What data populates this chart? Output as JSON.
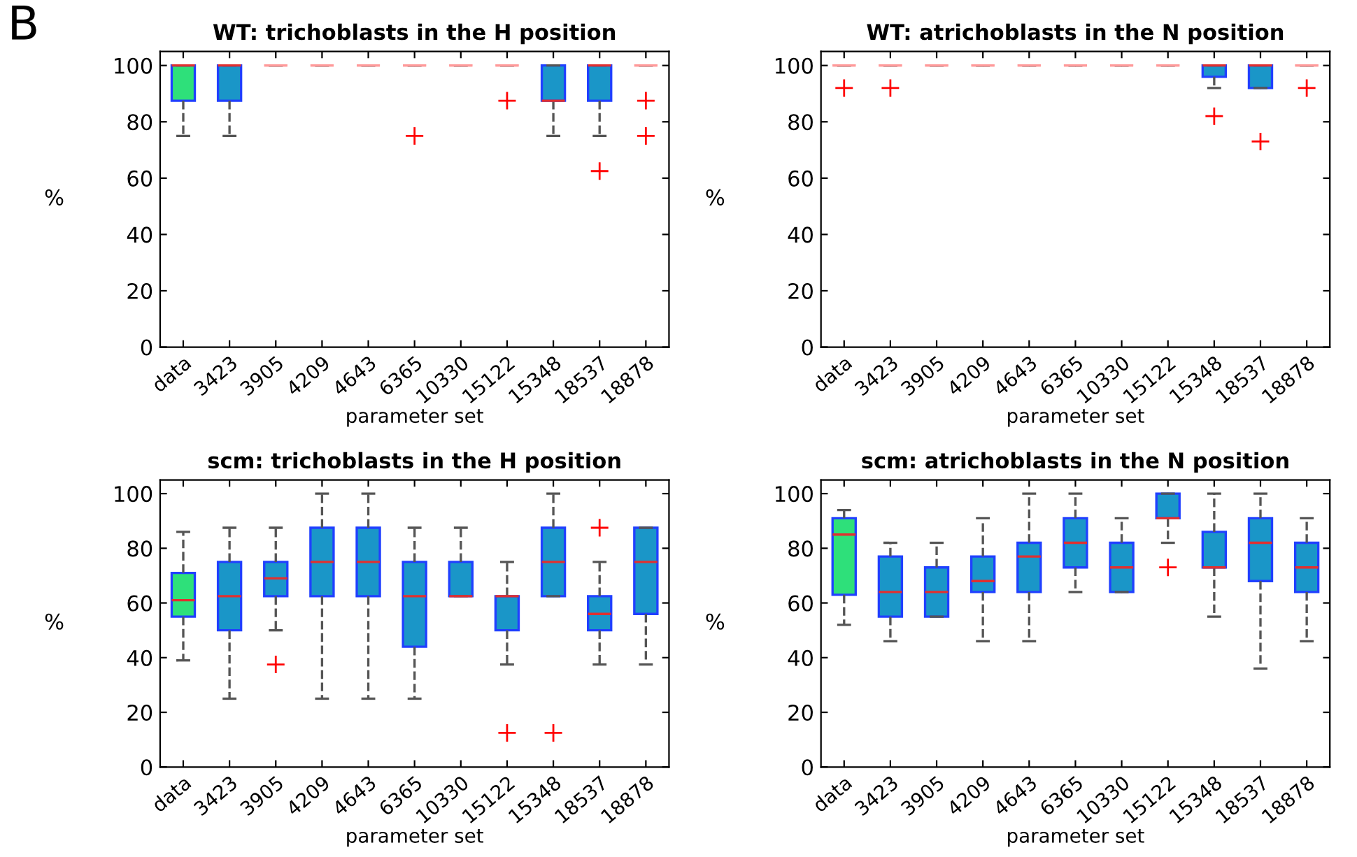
{
  "chart_data": [
    {
      "type": "box",
      "title": "WT: trichoblasts in the H position",
      "xlabel": "parameter set",
      "ylabel": "%",
      "annotations": [
        "B"
      ],
      "categories": [
        "data",
        "3423",
        "3905",
        "4209",
        "4643",
        "6365",
        "10330",
        "15122",
        "15348",
        "18537",
        "18878"
      ],
      "colors": [
        "#2ee07a",
        "#1a96c8",
        "#ff9a9a",
        "#ff9a9a",
        "#ff9a9a",
        "#ff9a9a",
        "#ff9a9a",
        "#ff9a9a",
        "#1a96c8",
        "#1a96c8",
        "#ff9a9a"
      ],
      "boxes": [
        {
          "low": 75,
          "q1": 87.5,
          "median": 100,
          "q3": 100,
          "high": 100
        },
        {
          "low": 75,
          "q1": 87.5,
          "median": 100,
          "q3": 100,
          "high": 100
        },
        {
          "low": 100,
          "q1": 100,
          "median": 100,
          "q3": 100,
          "high": 100
        },
        {
          "low": 100,
          "q1": 100,
          "median": 100,
          "q3": 100,
          "high": 100
        },
        {
          "low": 100,
          "q1": 100,
          "median": 100,
          "q3": 100,
          "high": 100
        },
        {
          "low": 100,
          "q1": 100,
          "median": 100,
          "q3": 100,
          "high": 100,
          "outliers": [
            75
          ]
        },
        {
          "low": 100,
          "q1": 100,
          "median": 100,
          "q3": 100,
          "high": 100
        },
        {
          "low": 100,
          "q1": 100,
          "median": 100,
          "q3": 100,
          "high": 100,
          "outliers": [
            87.5
          ]
        },
        {
          "low": 75,
          "q1": 87.5,
          "median": 87.5,
          "q3": 100,
          "high": 100
        },
        {
          "low": 75,
          "q1": 87.5,
          "median": 100,
          "q3": 100,
          "high": 100,
          "outliers": [
            62.5
          ]
        },
        {
          "low": 100,
          "q1": 100,
          "median": 100,
          "q3": 100,
          "high": 100,
          "outliers": [
            87.5,
            75
          ]
        }
      ],
      "ylim": [
        0,
        105
      ],
      "yticks": [
        0,
        20,
        40,
        60,
        80,
        100
      ],
      "grid": false
    },
    {
      "type": "box",
      "title": "WT: atrichoblasts in the N position",
      "xlabel": "parameter set",
      "ylabel": "%",
      "categories": [
        "data",
        "3423",
        "3905",
        "4209",
        "4643",
        "6365",
        "10330",
        "15122",
        "15348",
        "18537",
        "18878"
      ],
      "colors": [
        "#ff9a9a",
        "#ff9a9a",
        "#ff9a9a",
        "#ff9a9a",
        "#ff9a9a",
        "#ff9a9a",
        "#ff9a9a",
        "#ff9a9a",
        "#1a96c8",
        "#1a96c8",
        "#ff9a9a"
      ],
      "boxes": [
        {
          "low": 100,
          "q1": 100,
          "median": 100,
          "q3": 100,
          "high": 100,
          "outliers": [
            92
          ]
        },
        {
          "low": 100,
          "q1": 100,
          "median": 100,
          "q3": 100,
          "high": 100,
          "outliers": [
            92
          ]
        },
        {
          "low": 100,
          "q1": 100,
          "median": 100,
          "q3": 100,
          "high": 100
        },
        {
          "low": 100,
          "q1": 100,
          "median": 100,
          "q3": 100,
          "high": 100
        },
        {
          "low": 100,
          "q1": 100,
          "median": 100,
          "q3": 100,
          "high": 100
        },
        {
          "low": 100,
          "q1": 100,
          "median": 100,
          "q3": 100,
          "high": 100
        },
        {
          "low": 100,
          "q1": 100,
          "median": 100,
          "q3": 100,
          "high": 100
        },
        {
          "low": 100,
          "q1": 100,
          "median": 100,
          "q3": 100,
          "high": 100
        },
        {
          "low": 92,
          "q1": 96,
          "median": 100,
          "q3": 100,
          "high": 100,
          "outliers": [
            82
          ]
        },
        {
          "low": 92,
          "q1": 92,
          "median": 100,
          "q3": 100,
          "high": 100,
          "outliers": [
            73
          ]
        },
        {
          "low": 100,
          "q1": 100,
          "median": 100,
          "q3": 100,
          "high": 100,
          "outliers": [
            92
          ]
        }
      ],
      "ylim": [
        0,
        105
      ],
      "yticks": [
        0,
        20,
        40,
        60,
        80,
        100
      ],
      "grid": false
    },
    {
      "type": "box",
      "title": "scm: trichoblasts in the H position",
      "xlabel": "parameter set",
      "ylabel": "%",
      "categories": [
        "data",
        "3423",
        "3905",
        "4209",
        "4643",
        "6365",
        "10330",
        "15122",
        "15348",
        "18537",
        "18878"
      ],
      "colors": [
        "#2ee07a",
        "#1a96c8",
        "#1a96c8",
        "#1a96c8",
        "#1a96c8",
        "#1a96c8",
        "#1a96c8",
        "#1a96c8",
        "#1a96c8",
        "#1a96c8",
        "#1a96c8"
      ],
      "boxes": [
        {
          "low": 39,
          "q1": 55,
          "median": 61,
          "q3": 71,
          "high": 86
        },
        {
          "low": 25,
          "q1": 50,
          "median": 62.5,
          "q3": 75,
          "high": 87.5
        },
        {
          "low": 50,
          "q1": 62.5,
          "median": 69,
          "q3": 75,
          "high": 87.5,
          "outliers": [
            37.5
          ]
        },
        {
          "low": 25,
          "q1": 62.5,
          "median": 75,
          "q3": 87.5,
          "high": 100
        },
        {
          "low": 25,
          "q1": 62.5,
          "median": 75,
          "q3": 87.5,
          "high": 100
        },
        {
          "low": 25,
          "q1": 44,
          "median": 62.5,
          "q3": 75,
          "high": 87.5
        },
        {
          "low": 62.5,
          "q1": 62.5,
          "median": 62.5,
          "q3": 75,
          "high": 87.5
        },
        {
          "low": 37.5,
          "q1": 50,
          "median": 62.5,
          "q3": 62.5,
          "high": 75,
          "outliers": [
            12.5
          ]
        },
        {
          "low": 62.5,
          "q1": 62.5,
          "median": 75,
          "q3": 87.5,
          "high": 100,
          "outliers": [
            12.5
          ]
        },
        {
          "low": 37.5,
          "q1": 50,
          "median": 56,
          "q3": 62.5,
          "high": 75,
          "outliers": [
            87.5
          ]
        },
        {
          "low": 37.5,
          "q1": 56,
          "median": 75,
          "q3": 87.5,
          "high": 87.5
        }
      ],
      "ylim": [
        0,
        105
      ],
      "yticks": [
        0,
        20,
        40,
        60,
        80,
        100
      ],
      "grid": false
    },
    {
      "type": "box",
      "title": "scm: atrichoblasts in the N position",
      "xlabel": "parameter set",
      "ylabel": "%",
      "categories": [
        "data",
        "3423",
        "3905",
        "4209",
        "4643",
        "6365",
        "10330",
        "15122",
        "15348",
        "18537",
        "18878"
      ],
      "colors": [
        "#2ee07a",
        "#1a96c8",
        "#1a96c8",
        "#1a96c8",
        "#1a96c8",
        "#1a96c8",
        "#1a96c8",
        "#1a96c8",
        "#1a96c8",
        "#1a96c8",
        "#1a96c8"
      ],
      "boxes": [
        {
          "low": 52,
          "q1": 63,
          "median": 85,
          "q3": 91,
          "high": 94
        },
        {
          "low": 46,
          "q1": 55,
          "median": 64,
          "q3": 77,
          "high": 82
        },
        {
          "low": 55,
          "q1": 55,
          "median": 64,
          "q3": 73,
          "high": 82
        },
        {
          "low": 46,
          "q1": 64,
          "median": 68,
          "q3": 77,
          "high": 91
        },
        {
          "low": 46,
          "q1": 64,
          "median": 77,
          "q3": 82,
          "high": 100
        },
        {
          "low": 64,
          "q1": 73,
          "median": 82,
          "q3": 91,
          "high": 100
        },
        {
          "low": 64,
          "q1": 64,
          "median": 73,
          "q3": 82,
          "high": 91
        },
        {
          "low": 82,
          "q1": 91,
          "median": 91,
          "q3": 100,
          "high": 100,
          "outliers": [
            73
          ]
        },
        {
          "low": 55,
          "q1": 73,
          "median": 73,
          "q3": 86,
          "high": 100
        },
        {
          "low": 36,
          "q1": 68,
          "median": 82,
          "q3": 91,
          "high": 100
        },
        {
          "low": 46,
          "q1": 64,
          "median": 73,
          "q3": 82,
          "high": 91
        }
      ],
      "ylim": [
        0,
        105
      ],
      "yticks": [
        0,
        20,
        40,
        60,
        80,
        100
      ],
      "grid": false
    }
  ]
}
